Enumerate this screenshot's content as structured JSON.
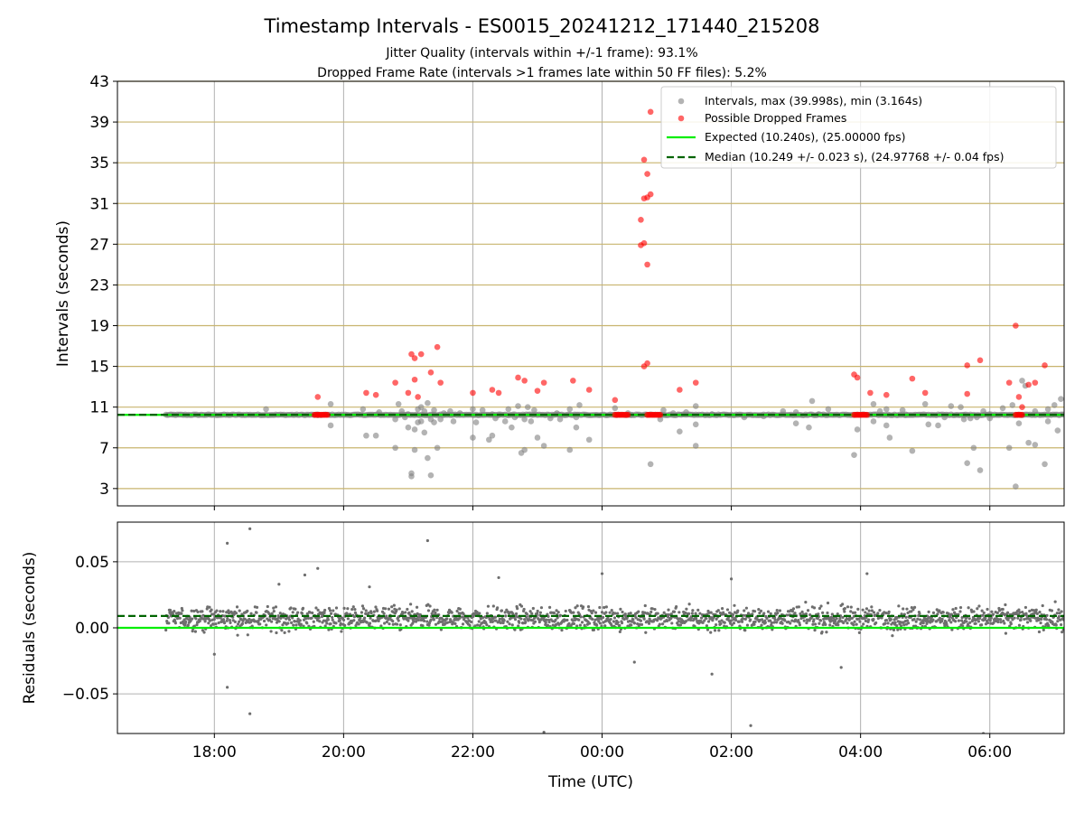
{
  "figure": {
    "title": "Timestamp Intervals - ES0015_20241212_171440_215208",
    "subtitle_1": "Jitter Quality (intervals within +/-1 frame): 93.1%",
    "subtitle_2": "Dropped Frame Rate (intervals >1 frames late within 50 FF files): 5.2%"
  },
  "colors": {
    "intervals": "#808080",
    "dropped": "#ff0000",
    "expected": "#00ee00",
    "median": "#006400",
    "hgrid_top": "#c8b46e",
    "grid": "#b0b0b0"
  },
  "chart_data": [
    {
      "type": "scatter",
      "panel": "top",
      "xlabel": "",
      "ylabel": "Intervals (seconds)",
      "x_unit": "hours UTC (24 = 00:00 next day)",
      "xlim": [
        16.5,
        31.15
      ],
      "ylim": [
        1.3,
        43
      ],
      "yticks": [
        3,
        7,
        11,
        15,
        19,
        23,
        27,
        31,
        35,
        39,
        43
      ],
      "xticks": [
        18,
        20,
        22,
        24,
        26,
        28,
        30
      ],
      "grid": true,
      "legend_position": "top-right",
      "legend": [
        "Intervals, max (39.998s), min (3.164s)",
        "Possible Dropped Frames",
        "Expected (10.240s), (25.00000 fps)",
        "Median (10.249 +/- 0.023 s), (24.97768 +/- 0.04 fps)"
      ],
      "expected_y": 10.24,
      "median_y": 10.249,
      "baseline_x_range": [
        17.25,
        31.15
      ],
      "intervals_points": [
        [
          18.8,
          10.8
        ],
        [
          19.6,
          10.2
        ],
        [
          19.8,
          11.3
        ],
        [
          19.8,
          9.2
        ],
        [
          20.3,
          10.8
        ],
        [
          20.35,
          8.2
        ],
        [
          20.5,
          8.2
        ],
        [
          20.8,
          9.8
        ],
        [
          20.8,
          7.0
        ],
        [
          20.85,
          11.3
        ],
        [
          20.9,
          10.6
        ],
        [
          20.95,
          10.0
        ],
        [
          21.0,
          9.0
        ],
        [
          21.05,
          4.5
        ],
        [
          21.05,
          4.2
        ],
        [
          21.1,
          8.8
        ],
        [
          21.1,
          6.8
        ],
        [
          21.15,
          10.8
        ],
        [
          21.15,
          9.5
        ],
        [
          21.2,
          11.0
        ],
        [
          21.2,
          9.6
        ],
        [
          21.25,
          10.6
        ],
        [
          21.25,
          8.5
        ],
        [
          21.3,
          6.0
        ],
        [
          21.3,
          11.4
        ],
        [
          21.35,
          9.8
        ],
        [
          21.35,
          4.3
        ],
        [
          21.4,
          9.5
        ],
        [
          21.4,
          10.7
        ],
        [
          21.45,
          7.0
        ],
        [
          21.5,
          9.8
        ],
        [
          21.55,
          10.4
        ],
        [
          22.0,
          8.0
        ],
        [
          22.0,
          10.8
        ],
        [
          22.25,
          7.8
        ],
        [
          22.3,
          8.2
        ],
        [
          22.3,
          10.3
        ],
        [
          22.35,
          9.9
        ],
        [
          22.5,
          9.6
        ],
        [
          22.55,
          10.8
        ],
        [
          22.6,
          9.0
        ],
        [
          22.65,
          10.0
        ],
        [
          22.7,
          11.1
        ],
        [
          22.75,
          6.5
        ],
        [
          22.8,
          6.8
        ],
        [
          22.8,
          9.8
        ],
        [
          22.85,
          11.0
        ],
        [
          22.9,
          9.6
        ],
        [
          22.95,
          10.7
        ],
        [
          23.0,
          8.0
        ],
        [
          23.1,
          7.2
        ],
        [
          23.2,
          9.9
        ],
        [
          23.3,
          10.4
        ],
        [
          23.5,
          10.8
        ],
        [
          23.5,
          6.8
        ],
        [
          23.6,
          10.0
        ],
        [
          23.6,
          9.0
        ],
        [
          23.65,
          11.2
        ],
        [
          23.8,
          7.8
        ],
        [
          24.2,
          10.9
        ],
        [
          24.4,
          10.4
        ],
        [
          24.45,
          10.2
        ],
        [
          24.75,
          5.4
        ],
        [
          24.9,
          9.8
        ],
        [
          25.1,
          10.4
        ],
        [
          25.2,
          8.6
        ],
        [
          25.45,
          9.3
        ],
        [
          25.45,
          7.2
        ],
        [
          25.45,
          11.1
        ],
        [
          26.5,
          10.1
        ],
        [
          26.8,
          10.6
        ],
        [
          27.0,
          10.5
        ],
        [
          27.0,
          9.4
        ],
        [
          27.2,
          9.0
        ],
        [
          27.25,
          11.6
        ],
        [
          27.35,
          10.3
        ],
        [
          27.5,
          10.8
        ],
        [
          27.9,
          6.3
        ],
        [
          27.95,
          8.8
        ],
        [
          28.2,
          9.6
        ],
        [
          28.2,
          11.3
        ],
        [
          28.3,
          10.6
        ],
        [
          28.4,
          10.8
        ],
        [
          28.4,
          9.2
        ],
        [
          28.45,
          8.0
        ],
        [
          28.7,
          10.2
        ],
        [
          28.8,
          6.7
        ],
        [
          29.0,
          11.3
        ],
        [
          29.05,
          9.3
        ],
        [
          29.3,
          10.0
        ],
        [
          29.4,
          11.1
        ],
        [
          29.55,
          11.0
        ],
        [
          29.6,
          10.2
        ],
        [
          29.6,
          9.8
        ],
        [
          29.65,
          5.5
        ],
        [
          29.7,
          9.9
        ],
        [
          29.75,
          7.0
        ],
        [
          29.8,
          10.0
        ],
        [
          29.85,
          4.8
        ],
        [
          30.0,
          10.3
        ],
        [
          30.3,
          7.0
        ],
        [
          30.35,
          11.2
        ],
        [
          30.4,
          3.2
        ],
        [
          30.45,
          9.4
        ],
        [
          30.5,
          13.6
        ],
        [
          30.55,
          13.1
        ],
        [
          30.6,
          7.5
        ],
        [
          30.7,
          7.3
        ],
        [
          30.7,
          10.6
        ],
        [
          30.85,
          5.4
        ],
        [
          30.9,
          9.6
        ],
        [
          31.0,
          11.2
        ],
        [
          31.05,
          8.7
        ],
        [
          31.1,
          11.8
        ],
        [
          30.0,
          9.9
        ],
        [
          29.9,
          10.6
        ],
        [
          30.2,
          10.9
        ],
        [
          30.9,
          10.8
        ],
        [
          22.4,
          10.2
        ],
        [
          23.35,
          9.8
        ],
        [
          21.65,
          10.6
        ],
        [
          21.7,
          9.6
        ],
        [
          21.8,
          10.4
        ],
        [
          24.95,
          10.7
        ],
        [
          26.2,
          10.0
        ],
        [
          25.7,
          10.3
        ],
        [
          22.15,
          10.7
        ],
        [
          22.05,
          9.5
        ],
        [
          21.0,
          10.3
        ],
        [
          20.55,
          10.5
        ],
        [
          25.3,
          10.5
        ],
        [
          28.65,
          10.7
        ],
        [
          29.2,
          9.2
        ]
      ],
      "dropped_points": [
        [
          19.6,
          12.0
        ],
        [
          20.35,
          12.4
        ],
        [
          20.5,
          12.2
        ],
        [
          20.8,
          13.4
        ],
        [
          21.0,
          12.4
        ],
        [
          21.05,
          16.2
        ],
        [
          21.1,
          15.8
        ],
        [
          21.1,
          13.7
        ],
        [
          21.15,
          12.0
        ],
        [
          21.2,
          16.2
        ],
        [
          21.35,
          14.4
        ],
        [
          21.45,
          16.9
        ],
        [
          21.5,
          13.4
        ],
        [
          22.0,
          12.4
        ],
        [
          22.3,
          12.7
        ],
        [
          22.4,
          12.4
        ],
        [
          22.7,
          13.9
        ],
        [
          22.8,
          13.6
        ],
        [
          23.0,
          12.6
        ],
        [
          23.1,
          13.4
        ],
        [
          23.55,
          13.6
        ],
        [
          23.8,
          12.7
        ],
        [
          24.2,
          11.7
        ],
        [
          24.6,
          26.9
        ],
        [
          24.6,
          29.4
        ],
        [
          24.65,
          27.1
        ],
        [
          24.65,
          31.5
        ],
        [
          24.65,
          35.3
        ],
        [
          24.7,
          31.6
        ],
        [
          24.7,
          33.9
        ],
        [
          24.7,
          25.0
        ],
        [
          24.75,
          31.9
        ],
        [
          24.75,
          40.0
        ],
        [
          24.65,
          15.0
        ],
        [
          24.7,
          15.3
        ],
        [
          25.2,
          12.7
        ],
        [
          25.45,
          13.4
        ],
        [
          27.9,
          14.2
        ],
        [
          27.95,
          13.9
        ],
        [
          28.15,
          12.4
        ],
        [
          28.4,
          12.2
        ],
        [
          28.8,
          13.8
        ],
        [
          29.0,
          12.4
        ],
        [
          29.65,
          15.1
        ],
        [
          29.65,
          12.3
        ],
        [
          29.85,
          15.6
        ],
        [
          30.3,
          13.4
        ],
        [
          30.4,
          19.0
        ],
        [
          30.45,
          12.0
        ],
        [
          30.5,
          11.0
        ],
        [
          30.6,
          13.2
        ],
        [
          30.7,
          13.4
        ],
        [
          30.85,
          15.1
        ]
      ],
      "dropped_clusters_x_at_expected": [
        [
          19.55,
          19.75
        ],
        [
          24.2,
          24.4
        ],
        [
          24.7,
          24.9
        ],
        [
          27.9,
          28.1
        ],
        [
          30.4,
          30.5
        ]
      ]
    },
    {
      "type": "scatter",
      "panel": "bottom",
      "xlabel": "Time (UTC)",
      "ylabel": "Residuals (seconds)",
      "xlim": [
        16.5,
        31.15
      ],
      "ylim": [
        -0.08,
        0.08
      ],
      "yticks": [
        -0.05,
        0.0,
        0.05
      ],
      "ytick_labels": [
        "−0.05",
        "0.00",
        "0.05"
      ],
      "xticks": [
        18,
        20,
        22,
        24,
        26,
        28,
        30
      ],
      "xtick_labels": [
        "18:00",
        "20:00",
        "22:00",
        "00:00",
        "02:00",
        "04:00",
        "06:00"
      ],
      "grid": true,
      "expected_y": 0.0,
      "median_y": 0.009,
      "residual_spread": {
        "center": 0.007,
        "typical_range": [
          -0.012,
          0.025
        ],
        "x_range": [
          17.25,
          31.15
        ]
      },
      "outlier_points": [
        [
          18.2,
          0.064
        ],
        [
          18.55,
          0.075
        ],
        [
          21.3,
          0.066
        ],
        [
          18.2,
          -0.045
        ],
        [
          18.55,
          -0.065
        ],
        [
          23.1,
          -0.079
        ],
        [
          26.3,
          -0.074
        ],
        [
          29.9,
          -0.08
        ],
        [
          25.7,
          -0.035
        ],
        [
          24.5,
          -0.026
        ],
        [
          27.7,
          -0.03
        ],
        [
          18.0,
          -0.02
        ],
        [
          19.6,
          0.045
        ],
        [
          19.4,
          0.04
        ],
        [
          22.4,
          0.038
        ],
        [
          24.0,
          0.041
        ],
        [
          28.1,
          0.041
        ],
        [
          26.0,
          0.037
        ],
        [
          19.0,
          0.033
        ],
        [
          20.4,
          0.031
        ]
      ]
    }
  ]
}
